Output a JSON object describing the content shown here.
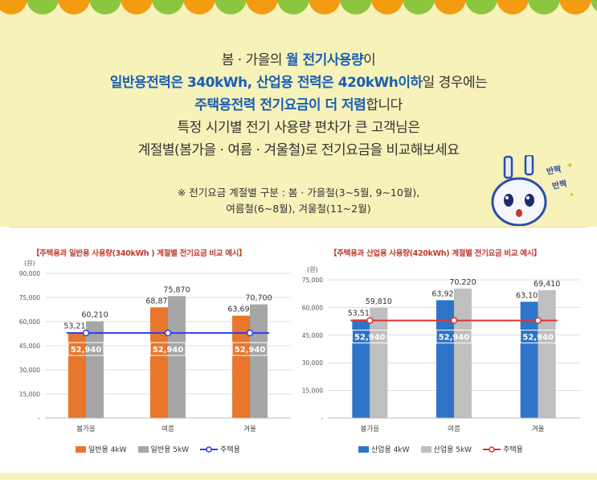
{
  "banner": {
    "line1_pre": "봄 · 가을의 ",
    "line1_hl": "월 전기사용량",
    "line1_post": "이",
    "line2_hl": "일반용전력은 340kWh, 산업용 전력은 420kWh이하",
    "line2_post": "일 경우에는",
    "line3_hl": "주택용전력 전기요금이 더 저렴",
    "line3_post": "합니다",
    "line4": "특정 시기별 전기 사용량 편차가 큰 고객님은",
    "line5": "계절별(봄가을 · 여름 · 겨울철)로 전기요금을 비교해보세요",
    "note1": "※ 전기요금 계절별 구분 : 봄 · 가을철(3~5월, 9~10월),",
    "note2": "여름철(6~8월), 겨울철(11~2월)",
    "mascot_text1": "반짝",
    "mascot_text2": "반짝",
    "colors": {
      "background": "#f6f2b9",
      "scallop_orange": "#f39c12",
      "scallop_green": "#8cc63f",
      "highlight": "#1a5fb4"
    }
  },
  "chart_data": [
    {
      "type": "bar",
      "title": "【주택용과 일반용 사용량(340kWh ) 계절별 전기요금 비교 예시】",
      "ylabel": "(원)",
      "ylim": [
        0,
        90000
      ],
      "yticks": [
        0,
        15000,
        30000,
        45000,
        60000,
        75000,
        90000
      ],
      "ytick_labels": [
        "-",
        "15,000",
        "30,000",
        "45,000",
        "60,000",
        "75,000",
        "90,000"
      ],
      "categories": [
        "봄가을",
        "여름",
        "겨울"
      ],
      "series": [
        {
          "name": "일반용 4kW",
          "type": "bar",
          "color": "#e8762c",
          "values": [
            53210,
            68870,
            63690
          ],
          "labels": [
            "53,210",
            "68,870",
            "63,690"
          ]
        },
        {
          "name": "일반용 5kW",
          "type": "bar",
          "color": "#a6a6a6",
          "values": [
            60210,
            75870,
            70700
          ],
          "labels": [
            "60,210",
            "75,870",
            "70,700"
          ]
        },
        {
          "name": "주택용",
          "type": "line",
          "color": "#2f3ce6",
          "values": [
            52940,
            52940,
            52940
          ],
          "labels": [
            "52,940",
            "52,940",
            "52,940"
          ]
        }
      ],
      "grid": true,
      "legend": "bottom"
    },
    {
      "type": "bar",
      "title": "【주택용과 산업용 사용량(420kWh) 계절별 전기요금 비교 예시】",
      "ylabel": "(원)",
      "ylim": [
        0,
        75000
      ],
      "yticks": [
        0,
        15000,
        30000,
        45000,
        60000,
        75000
      ],
      "ytick_labels": [
        "-",
        "15,000",
        "30,000",
        "45,000",
        "60,000",
        "75,000"
      ],
      "categories": [
        "봄가을",
        "여름",
        "겨울"
      ],
      "series": [
        {
          "name": "산업용 4kW",
          "type": "bar",
          "color": "#2e75c9",
          "values": [
            53510,
            63920,
            63100
          ],
          "labels": [
            "53,510",
            "63,920",
            "63,100"
          ]
        },
        {
          "name": "산업용 5kW",
          "type": "bar",
          "color": "#bfbfbf",
          "values": [
            59810,
            70220,
            69410
          ],
          "labels": [
            "59,810",
            "70,220",
            "69,410"
          ]
        },
        {
          "name": "주택용",
          "type": "line",
          "color": "#e03131",
          "values": [
            52940,
            52940,
            52940
          ],
          "labels": [
            "52,940",
            "52,940",
            "52,940"
          ]
        }
      ],
      "grid": true,
      "legend": "bottom"
    }
  ]
}
